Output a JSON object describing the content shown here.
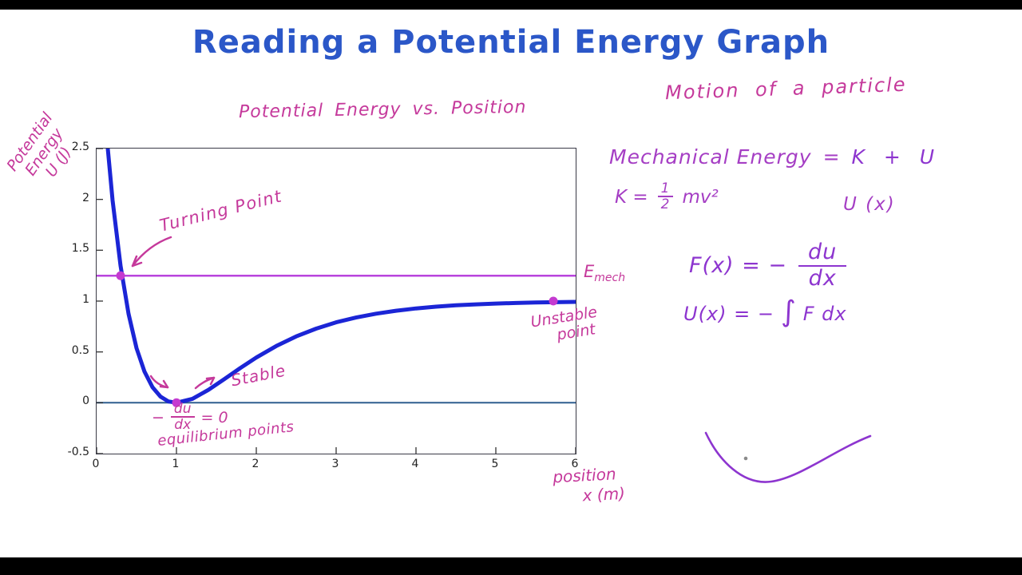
{
  "colors": {
    "title_blue": "#2b57c8",
    "handwriting_pink": "#c5399b",
    "handwriting_purple": "#a53ec4",
    "formula_purple": "#8d35cf",
    "tick_ink": "#222222"
  },
  "title": "Reading a Potential Energy Graph",
  "plot": {
    "title": "Potential Energy vs. Position",
    "ylabel_lines": [
      "Potential",
      "Energy",
      "U (J)"
    ],
    "xlabel_line1": "position",
    "xlabel_line2": "x (m)"
  },
  "annotations": {
    "turning_point": "Turning Point",
    "emech_main": "E",
    "emech_sub": "mech",
    "stable": "Stable",
    "unstable_line1": "Unstable",
    "unstable_line2": "point",
    "eq_minus": "−",
    "eq_num": "du",
    "eq_den": "dx",
    "eq_rhs": "= 0",
    "equilibrium": "equilibrium points"
  },
  "notes": {
    "motion": "Motion of a particle",
    "mech_lhs": "Mechanical Energy",
    "mech_eq": "=",
    "mech_rhs": "K + U",
    "kinetic_lhs": "K =",
    "kinetic_num": "1",
    "kinetic_den": "2",
    "kinetic_rhs": "mv²",
    "u_of_x": "U (x)",
    "force_lhs": "F(x)  =  −",
    "force_num": "du",
    "force_den": "dx",
    "integral_lhs": "U(x) =  −",
    "integral_sign": "∫",
    "integral_rhs": "F dx"
  },
  "chart_data": {
    "type": "line",
    "title": "Potential Energy vs. Position",
    "xlabel": "position x (m)",
    "ylabel": "Potential Energy U (J)",
    "xlim": [
      0,
      6
    ],
    "ylim": [
      -0.5,
      2.5
    ],
    "xticks": [
      0,
      1,
      2,
      3,
      4,
      5,
      6
    ],
    "xtick_labels": [
      "0",
      "1",
      "2",
      "3",
      "4",
      "5",
      "6"
    ],
    "yticks": [
      -0.5,
      0,
      0.5,
      1,
      1.5,
      2,
      2.5
    ],
    "ytick_labels": [
      "-0.5",
      "0",
      "0.5",
      "1",
      "1.5",
      "2",
      "2.5"
    ],
    "grid": false,
    "point_color": "#c43ad0",
    "series": [
      {
        "name": "zero-energy-line",
        "color": "#2f5f8f",
        "width": 2,
        "x": [
          0,
          6
        ],
        "y": [
          0,
          0
        ]
      },
      {
        "name": "mechanical-energy-line",
        "color": "#b844dd",
        "width": 2.5,
        "x": [
          0,
          6
        ],
        "y": [
          1.25,
          1.25
        ]
      },
      {
        "name": "potential-energy-curve",
        "color": "#1b25d6",
        "width": 5,
        "x": [
          0.14,
          0.2,
          0.3,
          0.4,
          0.5,
          0.6,
          0.7,
          0.8,
          0.9,
          1.0,
          1.2,
          1.4,
          1.6,
          1.8,
          2.0,
          2.25,
          2.5,
          2.75,
          3.0,
          3.25,
          3.5,
          3.75,
          4.0,
          4.25,
          4.5,
          4.75,
          5.0,
          5.25,
          5.5,
          5.75,
          6.0
        ],
        "y": [
          2.5,
          1.99,
          1.346,
          0.874,
          0.537,
          0.306,
          0.153,
          0.061,
          0.013,
          0.0,
          0.039,
          0.127,
          0.233,
          0.342,
          0.445,
          0.558,
          0.653,
          0.729,
          0.791,
          0.838,
          0.876,
          0.905,
          0.928,
          0.945,
          0.958,
          0.968,
          0.976,
          0.981,
          0.986,
          0.989,
          0.992
        ]
      }
    ],
    "points": [
      {
        "name": "turning-point-dot",
        "x": 0.3,
        "y": 1.25
      },
      {
        "name": "stable-equilibrium-dot",
        "x": 1.0,
        "y": 0.0
      },
      {
        "name": "unstable-point-dot",
        "x": 5.72,
        "y": 1.0
      }
    ]
  }
}
